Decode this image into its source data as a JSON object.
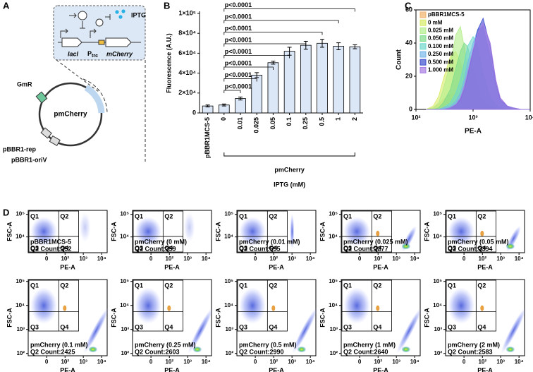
{
  "panels": [
    "A",
    "B",
    "C",
    "D"
  ],
  "diagram": {
    "lacI": "lacI",
    "promoter": [
      "P",
      "trc"
    ],
    "mCherry": "mCherry",
    "IPTG": "IPTG",
    "GmR": "GmR",
    "plasmid": "pmCherry",
    "rep": "pBBR1-rep",
    "oriV": "pBBR1-oriV"
  },
  "chart_data": [
    {
      "type": "bar",
      "ylabel": "Fluorescence (A.U.)",
      "xlabel": "IPTG (mM)",
      "categories": [
        "pBBR1MCS-5",
        "0",
        "0.01",
        "0.025",
        "0.05",
        "0.1",
        "0.25",
        "0.5",
        "1",
        "2"
      ],
      "values": [
        7000,
        8000,
        14500,
        38000,
        50500,
        62000,
        68000,
        70000,
        67000,
        66500
      ],
      "errors": [
        1000,
        1000,
        1500,
        2500,
        1500,
        4000,
        4000,
        4000,
        3500,
        2000
      ],
      "color": "#dbe7f7",
      "ylim": [
        0,
        100000
      ],
      "yticks": [
        0,
        {
          "value": 20000,
          "label": "2×10⁴"
        },
        {
          "value": 40000,
          "label": "4×10⁴"
        },
        {
          "value": 60000,
          "label": "6×10⁴"
        },
        {
          "value": 80000,
          "label": "8×10⁴"
        },
        {
          "value": 100000,
          "label": "1×10⁵"
        }
      ],
      "group": {
        "label": "pmCherry",
        "from": "0",
        "to": "2"
      },
      "significance": [
        {
          "from": "0",
          "to": "0.01",
          "label": "p<0.0001"
        },
        {
          "from": "0",
          "to": "0.025",
          "label": "p<0.0001"
        },
        {
          "from": "0",
          "to": "0.05",
          "label": "p<0.0001"
        },
        {
          "from": "0",
          "to": "0.1",
          "label": "p<0.0001"
        },
        {
          "from": "0",
          "to": "0.25",
          "label": "p<0.0001"
        },
        {
          "from": "0",
          "to": "0.5",
          "label": "p<0.0001"
        },
        {
          "from": "0",
          "to": "1",
          "label": "p<0.0001"
        },
        {
          "from": "0",
          "to": "2",
          "label": "p<0.0001"
        }
      ]
    },
    {
      "type": "area",
      "xlabel": "PE-A",
      "ylabel": "Count",
      "xscale": "log",
      "xlim": [
        100,
        10000
      ],
      "xticks": [
        {
          "value": 100,
          "label": "10²"
        },
        {
          "value": 1000,
          "label": "10³"
        },
        {
          "value": 10000,
          "label": "10⁴"
        }
      ],
      "ylim": [
        0,
        60
      ],
      "yticks": [
        0,
        20,
        40,
        60
      ],
      "legend": "top-left",
      "x": [
        150,
        200,
        250,
        300,
        400,
        500,
        600,
        700,
        800,
        1000,
        1200,
        1500,
        2000,
        2500,
        3000,
        4000,
        5000,
        7000,
        10000
      ],
      "series": [
        {
          "name": "pBBR1MCS-5",
          "color": "#f2b36b",
          "values": [
            0,
            1,
            3,
            6,
            9,
            10,
            9,
            7,
            5,
            3,
            2,
            1,
            0,
            0,
            0,
            0,
            0,
            0,
            0
          ]
        },
        {
          "name": "0 mM",
          "color": "#d8ec6a",
          "values": [
            0,
            2,
            8,
            18,
            32,
            35,
            28,
            20,
            12,
            6,
            3,
            2,
            1,
            0,
            0,
            0,
            0,
            0,
            0
          ]
        },
        {
          "name": "0.025 mM",
          "color": "#b4ee8a",
          "values": [
            0,
            1,
            4,
            12,
            28,
            45,
            50,
            38,
            25,
            12,
            6,
            3,
            1,
            0,
            0,
            0,
            0,
            0,
            0
          ]
        },
        {
          "name": "0.050 mM",
          "color": "#7fdc8a",
          "values": [
            0,
            0,
            1,
            4,
            12,
            25,
            35,
            40,
            38,
            25,
            14,
            6,
            2,
            1,
            0,
            0,
            0,
            0,
            0
          ]
        },
        {
          "name": "0.100 mM",
          "color": "#6fd9cc",
          "values": [
            0,
            0,
            0,
            1,
            4,
            10,
            18,
            28,
            38,
            44,
            38,
            22,
            8,
            3,
            1,
            0,
            0,
            0,
            0
          ]
        },
        {
          "name": "0.250 mM",
          "color": "#79b8ea",
          "values": [
            0,
            0,
            0,
            1,
            2,
            5,
            10,
            18,
            28,
            40,
            48,
            50,
            32,
            14,
            5,
            2,
            1,
            0,
            0
          ]
        },
        {
          "name": "0.500 mM",
          "color": "#3f4fcf",
          "values": [
            0,
            0,
            0,
            0,
            1,
            3,
            6,
            12,
            20,
            35,
            48,
            55,
            38,
            16,
            6,
            2,
            1,
            0,
            0
          ]
        },
        {
          "name": "1.000 mM",
          "color": "#a77be3",
          "values": [
            0,
            0,
            0,
            0,
            1,
            3,
            7,
            14,
            22,
            36,
            46,
            52,
            40,
            18,
            7,
            2,
            1,
            0,
            0
          ]
        }
      ]
    },
    {
      "type": "flow",
      "xlabel": "PE-A",
      "ylabel": "FSC-A",
      "xlim": [
        -100,
        20000
      ],
      "xticks": [
        0,
        {
          "value": 100,
          "label": "10²"
        },
        {
          "value": 1000,
          "label": "10³"
        },
        {
          "value": 10000,
          "label": "10⁴"
        }
      ],
      "ylim": [
        2000,
        150000
      ],
      "yticks": [
        {
          "value": 10000,
          "label": "10⁴"
        },
        {
          "value": 100000,
          "label": "10⁵"
        }
      ],
      "quadrants": [
        "Q1",
        "Q2",
        "Q3",
        "Q4"
      ],
      "label": "pBBR1MCS-5",
      "annotation": "Q2 Count:252"
    },
    {
      "type": "flow",
      "xlabel": "PE-A",
      "ylabel": "FSC-A",
      "xlim": [
        -100,
        20000
      ],
      "xticks": [
        0,
        {
          "value": 100,
          "label": "10²"
        },
        {
          "value": 1000,
          "label": "10³"
        },
        {
          "value": 10000,
          "label": "10⁴"
        }
      ],
      "ylim": [
        2000,
        150000
      ],
      "yticks": [
        {
          "value": 10000,
          "label": "10⁴"
        },
        {
          "value": 100000,
          "label": "10⁵"
        }
      ],
      "quadrants": [
        "Q1",
        "Q2",
        "Q3",
        "Q4"
      ],
      "label": "pmCherry (0 mM)",
      "annotation": "Q2 Count:259"
    },
    {
      "type": "flow",
      "xlabel": "PE-A",
      "ylabel": "FSC-A",
      "xlim": [
        -100,
        20000
      ],
      "xticks": [
        0,
        {
          "value": 100,
          "label": "10²"
        },
        {
          "value": 1000,
          "label": "10³"
        },
        {
          "value": 10000,
          "label": "10⁴"
        }
      ],
      "ylim": [
        2000,
        150000
      ],
      "yticks": [
        {
          "value": 10000,
          "label": "10⁴"
        },
        {
          "value": 100000,
          "label": "10⁵"
        }
      ],
      "quadrants": [
        "Q1",
        "Q2",
        "Q3",
        "Q4"
      ],
      "label": "pmCherry (0.01 mM)",
      "annotation": "Q2 Count:595"
    },
    {
      "type": "flow",
      "xlabel": "PE-A",
      "ylabel": "FSC-A",
      "xlim": [
        -100,
        20000
      ],
      "xticks": [
        0,
        {
          "value": 100,
          "label": "10²"
        },
        {
          "value": 1000,
          "label": "10³"
        },
        {
          "value": 10000,
          "label": "10⁴"
        }
      ],
      "ylim": [
        2000,
        150000
      ],
      "yticks": [
        {
          "value": 10000,
          "label": "10⁴"
        },
        {
          "value": 100000,
          "label": "10⁵"
        }
      ],
      "quadrants": [
        "Q1",
        "Q2",
        "Q3",
        "Q4"
      ],
      "label": "pmCherry (0.025 mM)",
      "annotation": "Q2 Count:2277"
    },
    {
      "type": "flow",
      "xlabel": "PE-A",
      "ylabel": "FSC-A",
      "xlim": [
        -100,
        20000
      ],
      "xticks": [
        0,
        {
          "value": 100,
          "label": "10²"
        },
        {
          "value": 1000,
          "label": "10³"
        },
        {
          "value": 10000,
          "label": "10⁴"
        }
      ],
      "ylim": [
        2000,
        150000
      ],
      "yticks": [
        {
          "value": 10000,
          "label": "10⁴"
        },
        {
          "value": 100000,
          "label": "10⁵"
        }
      ],
      "quadrants": [
        "Q1",
        "Q2",
        "Q3",
        "Q4"
      ],
      "label": "pmCherry (0.05 mM)",
      "annotation": "Q2 Count:2394"
    },
    {
      "type": "flow",
      "xlabel": "PE-A",
      "ylabel": "FSC-A",
      "xlim": [
        -100,
        20000
      ],
      "xticks": [
        0,
        {
          "value": 100,
          "label": "10²"
        },
        {
          "value": 1000,
          "label": "10³"
        },
        {
          "value": 10000,
          "label": "10⁴"
        }
      ],
      "ylim": [
        80,
        120000
      ],
      "yticks": [
        {
          "value": 100,
          "label": "10²"
        },
        {
          "value": 1000,
          "label": "10³"
        },
        {
          "value": 10000,
          "label": "10⁴"
        },
        {
          "value": 100000,
          "label": "10⁵"
        }
      ],
      "quadrants": [
        "Q1",
        "Q2",
        "Q3",
        "Q4"
      ],
      "label": "pmCherry (0.1 mM)",
      "annotation": "Q2 Count:2425"
    },
    {
      "type": "flow",
      "xlabel": "PE-A",
      "ylabel": "FSC-A",
      "xlim": [
        -100,
        20000
      ],
      "xticks": [
        0,
        {
          "value": 100,
          "label": "10²"
        },
        {
          "value": 1000,
          "label": "10³"
        },
        {
          "value": 10000,
          "label": "10⁴"
        }
      ],
      "ylim": [
        80,
        120000
      ],
      "yticks": [
        {
          "value": 100,
          "label": "10²"
        },
        {
          "value": 1000,
          "label": "10³"
        },
        {
          "value": 10000,
          "label": "10⁴"
        },
        {
          "value": 100000,
          "label": "10⁵"
        }
      ],
      "quadrants": [
        "Q1",
        "Q2",
        "Q3",
        "Q4"
      ],
      "label": "pmCherry (0.25 mM)",
      "annotation": "Q2 Count:2603"
    },
    {
      "type": "flow",
      "xlabel": "PE-A",
      "ylabel": "FSC-A",
      "xlim": [
        -100,
        20000
      ],
      "xticks": [
        0,
        {
          "value": 100,
          "label": "10²"
        },
        {
          "value": 1000,
          "label": "10³"
        },
        {
          "value": 10000,
          "label": "10⁴"
        }
      ],
      "ylim": [
        80,
        120000
      ],
      "yticks": [
        {
          "value": 100,
          "label": "10²"
        },
        {
          "value": 1000,
          "label": "10³"
        },
        {
          "value": 10000,
          "label": "10⁴"
        },
        {
          "value": 100000,
          "label": "10⁵"
        }
      ],
      "quadrants": [
        "Q1",
        "Q2",
        "Q3",
        "Q4"
      ],
      "label": "pmCherry (0.5 mM)",
      "annotation": "Q2 Count:2990"
    },
    {
      "type": "flow",
      "xlabel": "PE-A",
      "ylabel": "FSC-A",
      "xlim": [
        -100,
        20000
      ],
      "xticks": [
        0,
        {
          "value": 100,
          "label": "10²"
        },
        {
          "value": 1000,
          "label": "10³"
        },
        {
          "value": 10000,
          "label": "10⁴"
        }
      ],
      "ylim": [
        80,
        120000
      ],
      "yticks": [
        {
          "value": 100,
          "label": "10²"
        },
        {
          "value": 1000,
          "label": "10³"
        },
        {
          "value": 10000,
          "label": "10⁴"
        },
        {
          "value": 100000,
          "label": "10⁵"
        }
      ],
      "quadrants": [
        "Q1",
        "Q2",
        "Q3",
        "Q4"
      ],
      "label": "pmCherry (1 mM)",
      "annotation": "Q2 Count:2640"
    },
    {
      "type": "flow",
      "xlabel": "PE-A",
      "ylabel": "FSC-A",
      "xlim": [
        -100,
        20000
      ],
      "xticks": [
        0,
        {
          "value": 100,
          "label": "10²"
        },
        {
          "value": 1000,
          "label": "10³"
        },
        {
          "value": 10000,
          "label": "10⁴"
        }
      ],
      "ylim": [
        80,
        120000
      ],
      "yticks": [
        {
          "value": 100,
          "label": "10²"
        },
        {
          "value": 1000,
          "label": "10³"
        },
        {
          "value": 10000,
          "label": "10⁴"
        },
        {
          "value": 100000,
          "label": "10⁵"
        }
      ],
      "quadrants": [
        "Q1",
        "Q2",
        "Q3",
        "Q4"
      ],
      "label": "pmCherry (2 mM)",
      "annotation": "Q2 Count:2583"
    }
  ]
}
